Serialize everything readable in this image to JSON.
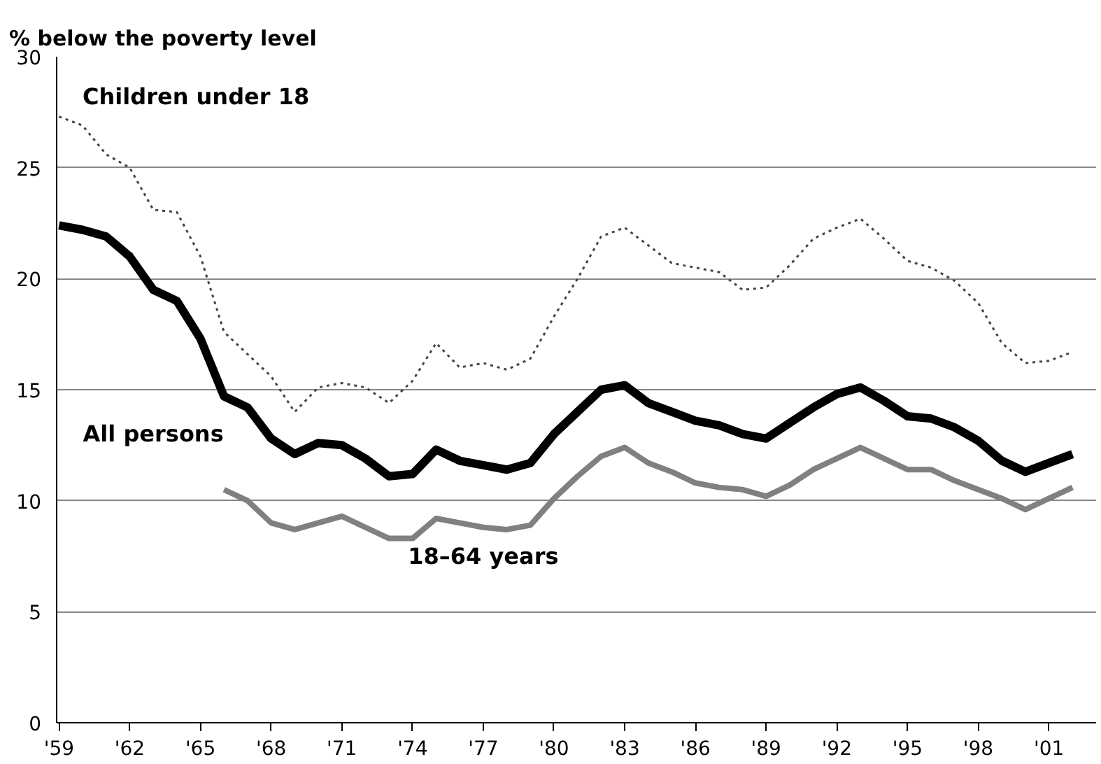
{
  "chart_data": {
    "type": "line",
    "ylabel": "% below the poverty level",
    "x": [
      1959,
      1960,
      1961,
      1962,
      1963,
      1964,
      1965,
      1966,
      1967,
      1968,
      1969,
      1970,
      1971,
      1972,
      1973,
      1974,
      1975,
      1976,
      1977,
      1978,
      1979,
      1980,
      1981,
      1982,
      1983,
      1984,
      1985,
      1986,
      1987,
      1988,
      1989,
      1990,
      1991,
      1992,
      1993,
      1994,
      1995,
      1996,
      1997,
      1998,
      1999,
      2000,
      2001,
      2002
    ],
    "series": [
      {
        "name": "Children under 18",
        "color": "#444444",
        "line_style": "dotted",
        "values": [
          27.3,
          26.9,
          25.6,
          25.0,
          23.1,
          23.0,
          21.0,
          17.6,
          16.6,
          15.6,
          14.0,
          15.1,
          15.3,
          15.1,
          14.4,
          15.4,
          17.1,
          16.0,
          16.2,
          15.9,
          16.4,
          18.3,
          20.0,
          21.9,
          22.3,
          21.5,
          20.7,
          20.5,
          20.3,
          19.5,
          19.6,
          20.6,
          21.8,
          22.3,
          22.7,
          21.8,
          20.8,
          20.5,
          19.9,
          18.9,
          17.1,
          16.2,
          16.3,
          16.7
        ]
      },
      {
        "name": "All persons",
        "color": "#000000",
        "line_style": "solid",
        "values": [
          22.4,
          22.2,
          21.9,
          21.0,
          19.5,
          19.0,
          17.3,
          14.7,
          14.2,
          12.8,
          12.1,
          12.6,
          12.5,
          11.9,
          11.1,
          11.2,
          12.3,
          11.8,
          11.6,
          11.4,
          11.7,
          13.0,
          14.0,
          15.0,
          15.2,
          14.4,
          14.0,
          13.6,
          13.4,
          13.0,
          12.8,
          13.5,
          14.2,
          14.8,
          15.1,
          14.5,
          13.8,
          13.7,
          13.3,
          12.7,
          11.8,
          11.3,
          11.7,
          12.1
        ]
      },
      {
        "name": "18–64 years",
        "color": "#808080",
        "line_style": "solid",
        "values": [
          null,
          null,
          null,
          null,
          null,
          null,
          null,
          10.5,
          10.0,
          9.0,
          8.7,
          9.0,
          9.3,
          8.8,
          8.3,
          8.3,
          9.2,
          9.0,
          8.8,
          8.7,
          8.9,
          10.1,
          11.1,
          12.0,
          12.4,
          11.7,
          11.3,
          10.8,
          10.6,
          10.5,
          10.2,
          10.7,
          11.4,
          11.9,
          12.4,
          11.9,
          11.4,
          11.4,
          10.9,
          10.5,
          10.1,
          9.6,
          10.1,
          10.6
        ]
      }
    ],
    "xlim": [
      1958.9,
      2003
    ],
    "xticks": [
      {
        "value": 1959,
        "label": "'59"
      },
      {
        "value": 1962,
        "label": "'62"
      },
      {
        "value": 1965,
        "label": "'65"
      },
      {
        "value": 1968,
        "label": "'68"
      },
      {
        "value": 1971,
        "label": "'71"
      },
      {
        "value": 1974,
        "label": "'74"
      },
      {
        "value": 1977,
        "label": "'77"
      },
      {
        "value": 1980,
        "label": "'80"
      },
      {
        "value": 1983,
        "label": "'83"
      },
      {
        "value": 1986,
        "label": "'86"
      },
      {
        "value": 1989,
        "label": "'89"
      },
      {
        "value": 1992,
        "label": "'92"
      },
      {
        "value": 1995,
        "label": "'95"
      },
      {
        "value": 1998,
        "label": "'98"
      },
      {
        "value": 2001,
        "label": "'01"
      }
    ],
    "ylim": [
      0,
      30
    ],
    "yticks": [
      0,
      5,
      10,
      15,
      20,
      25,
      30
    ],
    "grid": "y"
  }
}
